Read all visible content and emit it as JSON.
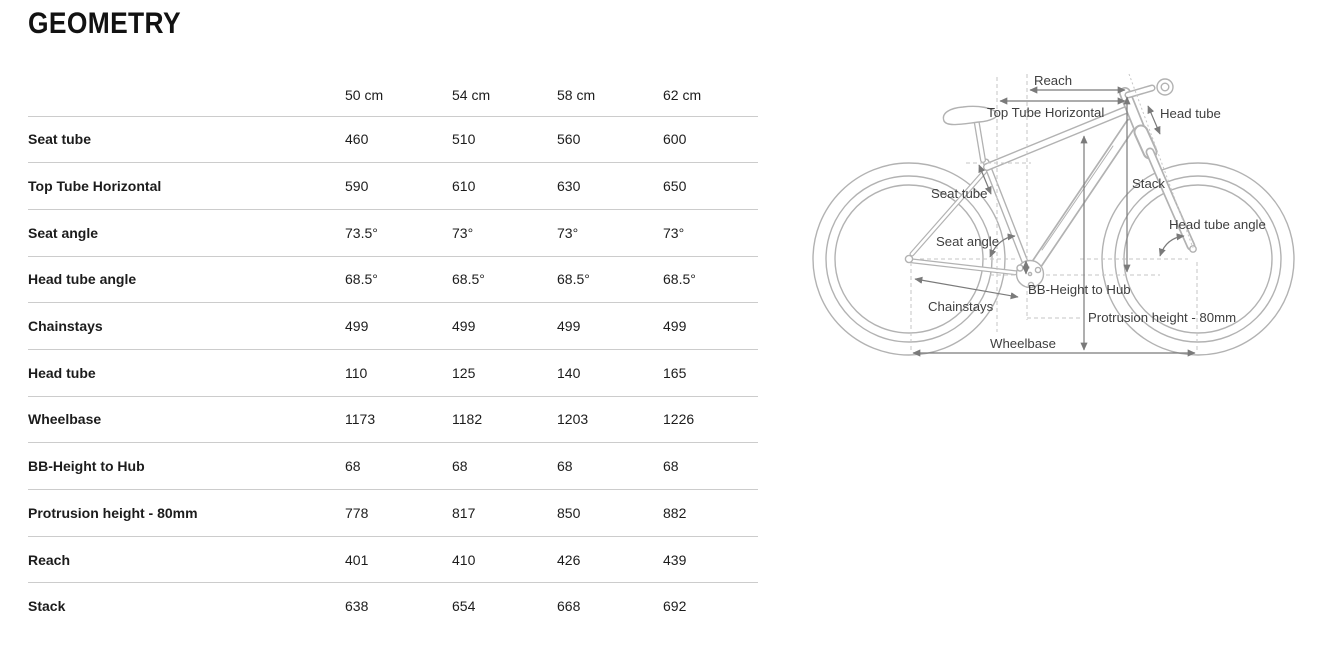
{
  "page": {
    "title": "GEOMETRY"
  },
  "table": {
    "columns": [
      "50 cm",
      "54 cm",
      "58 cm",
      "62 cm"
    ],
    "rows": [
      {
        "label": "Seat tube",
        "values": [
          "460",
          "510",
          "560",
          "600"
        ]
      },
      {
        "label": "Top Tube Horizontal",
        "values": [
          "590",
          "610",
          "630",
          "650"
        ]
      },
      {
        "label": "Seat angle",
        "values": [
          "73.5°",
          "73°",
          "73°",
          "73°"
        ]
      },
      {
        "label": "Head tube angle",
        "values": [
          "68.5°",
          "68.5°",
          "68.5°",
          "68.5°"
        ]
      },
      {
        "label": "Chainstays",
        "values": [
          "499",
          "499",
          "499",
          "499"
        ]
      },
      {
        "label": "Head tube",
        "values": [
          "110",
          "125",
          "140",
          "165"
        ]
      },
      {
        "label": "Wheelbase",
        "values": [
          "1173",
          "1182",
          "1203",
          "1226"
        ]
      },
      {
        "label": "BB-Height to Hub",
        "values": [
          "68",
          "68",
          "68",
          "68"
        ]
      },
      {
        "label": "Protrusion height - 80mm",
        "values": [
          "778",
          "817",
          "850",
          "882"
        ]
      },
      {
        "label": "Reach",
        "values": [
          "401",
          "410",
          "426",
          "439"
        ]
      },
      {
        "label": "Stack",
        "values": [
          "638",
          "654",
          "668",
          "692"
        ]
      }
    ]
  },
  "diagram": {
    "labels": {
      "reach": "Reach",
      "top_tube_horizontal": "Top Tube Horizontal",
      "head_tube": "Head tube",
      "seat_tube": "Seat tube",
      "stack": "Stack",
      "head_tube_angle": "Head tube angle",
      "seat_angle": "Seat angle",
      "bb_height_to_hub": "BB-Height to Hub",
      "chainstays": "Chainstays",
      "protrusion_height": "Protrusion height - 80mm",
      "wheelbase": "Wheelbase"
    }
  },
  "colors": {
    "text": "#1c1c1c",
    "diagram_label_text": "#3f3f3f",
    "bike_line": "#b2b2b2",
    "dimension_line": "#7a7a7a",
    "dashed_reference": "#c6c6c6",
    "table_divider": "#cccccc"
  }
}
